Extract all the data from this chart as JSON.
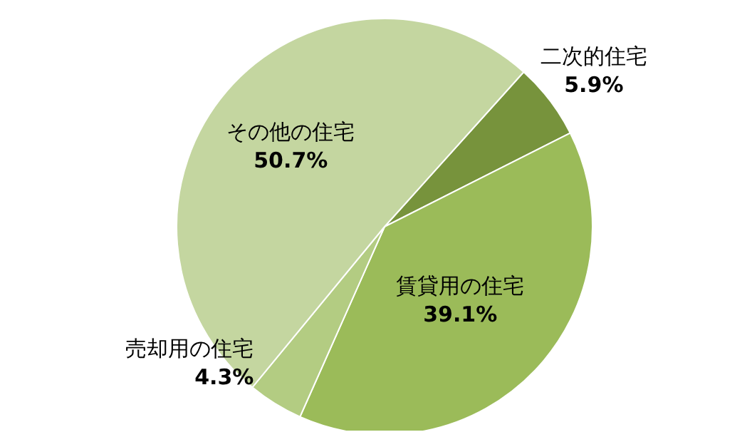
{
  "chart_data": {
    "type": "pie",
    "categories": [
      "二次的住宅",
      "賃貸用の住宅",
      "売却用の住宅",
      "その他の住宅"
    ],
    "values": [
      5.9,
      39.1,
      4.3,
      50.7
    ],
    "value_labels": [
      "5.9%",
      "39.1%",
      "4.3%",
      "50.7%"
    ],
    "colors": [
      "#77933c",
      "#9bbb59",
      "#b3cc82",
      "#c4d6a0"
    ]
  }
}
